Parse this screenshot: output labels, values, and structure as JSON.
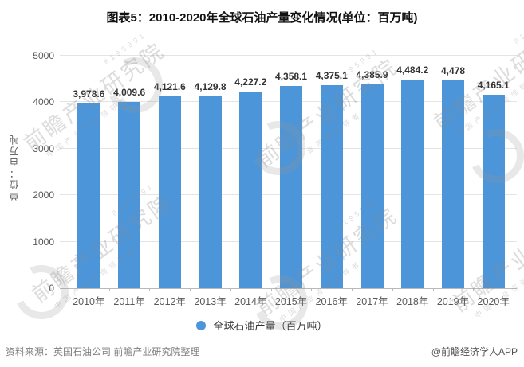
{
  "title": "图表5：2010-2020年全球石油产量变化情况(单位：百万吨)",
  "chart_data": {
    "type": "bar",
    "title": "图表5：2010-2020年全球石油产量变化情况(单位：百万吨)",
    "categories": [
      "2010年",
      "2011年",
      "2012年",
      "2013年",
      "2014年",
      "2015年",
      "2016年",
      "2017年",
      "2018年",
      "2019年",
      "2020年"
    ],
    "values": [
      3978.6,
      4009.6,
      4121.6,
      4129.8,
      4227.2,
      4358.1,
      4375.1,
      4385.9,
      4484.2,
      4478,
      4165.1
    ],
    "value_labels": [
      "3,978.6",
      "4,009.6",
      "4,121.6",
      "4,129.8",
      "4,227.2",
      "4,358.1",
      "4,375.1",
      "4,385.9",
      "4,484.2",
      "4,478",
      "4,165.1"
    ],
    "xlabel": "",
    "ylabel": "单位：百万吨",
    "ylim": [
      0,
      5000
    ],
    "yticks": [
      0,
      1000,
      2000,
      3000,
      4000,
      5000
    ],
    "grid": true,
    "legend_position": "bottom",
    "legend": "全球石油产量（百万吨）",
    "bar_color": "#4C95D9"
  },
  "legend": {
    "label": "全球石油产量（百万吨）",
    "marker_color": "#4C95D9"
  },
  "footer": {
    "source": "资料来源：英国石油公司 前瞻产业研究院整理",
    "credit": "@前瞻经济学人APP"
  },
  "watermark": {
    "text": "前瞻产业研究院",
    "subtext": "中国产业咨询领导者",
    "digits": "8195991"
  },
  "colors": {
    "bar": "#4C95D9",
    "gridline": "#e4e4e4",
    "axis_line": "#b9b9b9",
    "axis_text": "#595959",
    "value_label": "#333333",
    "title_text": "#111111",
    "source_text": "#808080",
    "credit_text": "#4f4f4f"
  }
}
